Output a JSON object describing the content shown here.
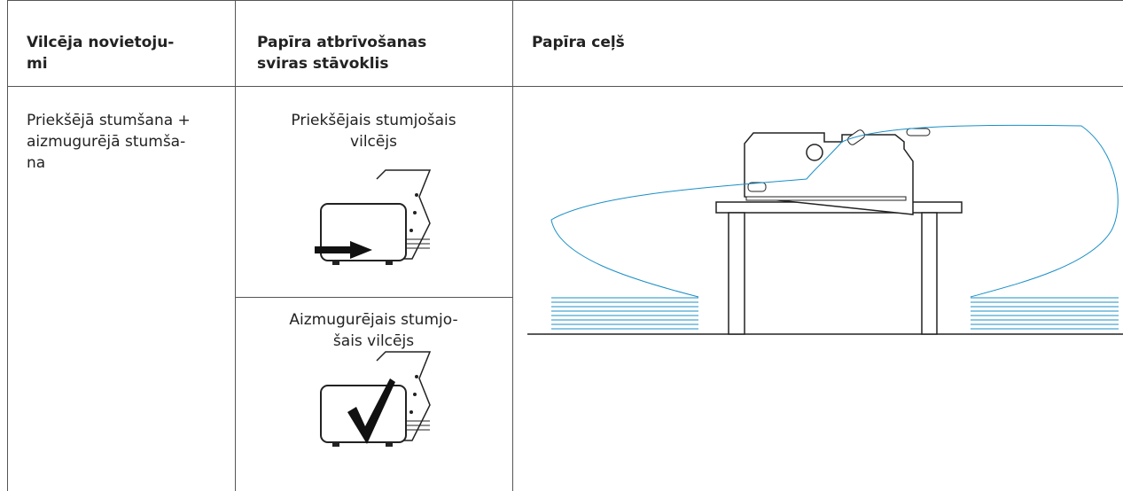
{
  "table": {
    "header": [
      "Vilcēja novietoju-\nmi",
      "Papīra atbrīvošanas\nsviras stāvoklis",
      "Papīra ceļš"
    ],
    "rows": [
      {
        "position": "Priekšējā stumšana +\naizmugurējā stumša-\nna",
        "lever": [
          "Priekšējais stumjošais\nvilcējs",
          "Aizmugurējais stumjo-\nšais vilcējs"
        ]
      }
    ]
  }
}
